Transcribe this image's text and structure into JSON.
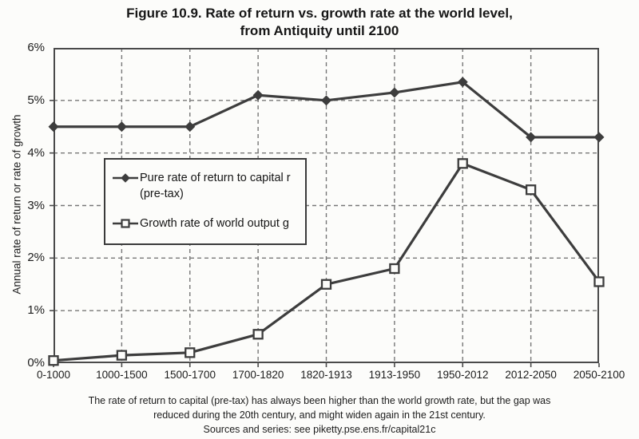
{
  "figure": {
    "title_line1": "Figure 10.9. Rate of return vs. growth rate at the world level,",
    "title_line2": "from Antiquity until 2100",
    "caption_line1": "The rate of return to capital (pre-tax) has always been higher than the world growth rate, but the gap was",
    "caption_line2": "reduced during the 20th century, and might widen again in the 21st century.",
    "caption_line3": "Sources and series: see piketty.pse.ens.fr/capital21c"
  },
  "chart_data": {
    "type": "line",
    "title": "Figure 10.9. Rate of return vs. growth rate at the world level, from Antiquity until 2100",
    "xlabel": "",
    "ylabel": "Annual rate of return or rate of growth",
    "categories": [
      "0-1000",
      "1000-1500",
      "1500-1700",
      "1700-1820",
      "1820-1913",
      "1913-1950",
      "1950-2012",
      "2012-2050",
      "2050-2100"
    ],
    "series": [
      {
        "name": "Pure rate of return to capital r (pre-tax)",
        "legend_lines": [
          "Pure rate of return to capital r",
          "(pre-tax)"
        ],
        "marker": "diamond-filled",
        "values": [
          4.5,
          4.5,
          4.5,
          5.1,
          5.0,
          5.15,
          5.35,
          4.3,
          4.3
        ]
      },
      {
        "name": "Growth rate of world output g",
        "legend_lines": [
          "Growth rate of world output g"
        ],
        "marker": "square-open",
        "values": [
          0.05,
          0.15,
          0.2,
          0.55,
          1.5,
          1.8,
          3.8,
          3.3,
          1.55
        ]
      }
    ],
    "y_ticks": [
      "0%",
      "1%",
      "2%",
      "3%",
      "4%",
      "5%",
      "6%"
    ],
    "ylim": [
      0,
      6
    ],
    "grid": true,
    "legend_position": "upper-left-inside",
    "colors": {
      "line": "#3d3d3d",
      "grid": "#777777",
      "border": "#4a4a4a",
      "background": "#fcfcfa",
      "text": "#1d1d1d"
    }
  }
}
